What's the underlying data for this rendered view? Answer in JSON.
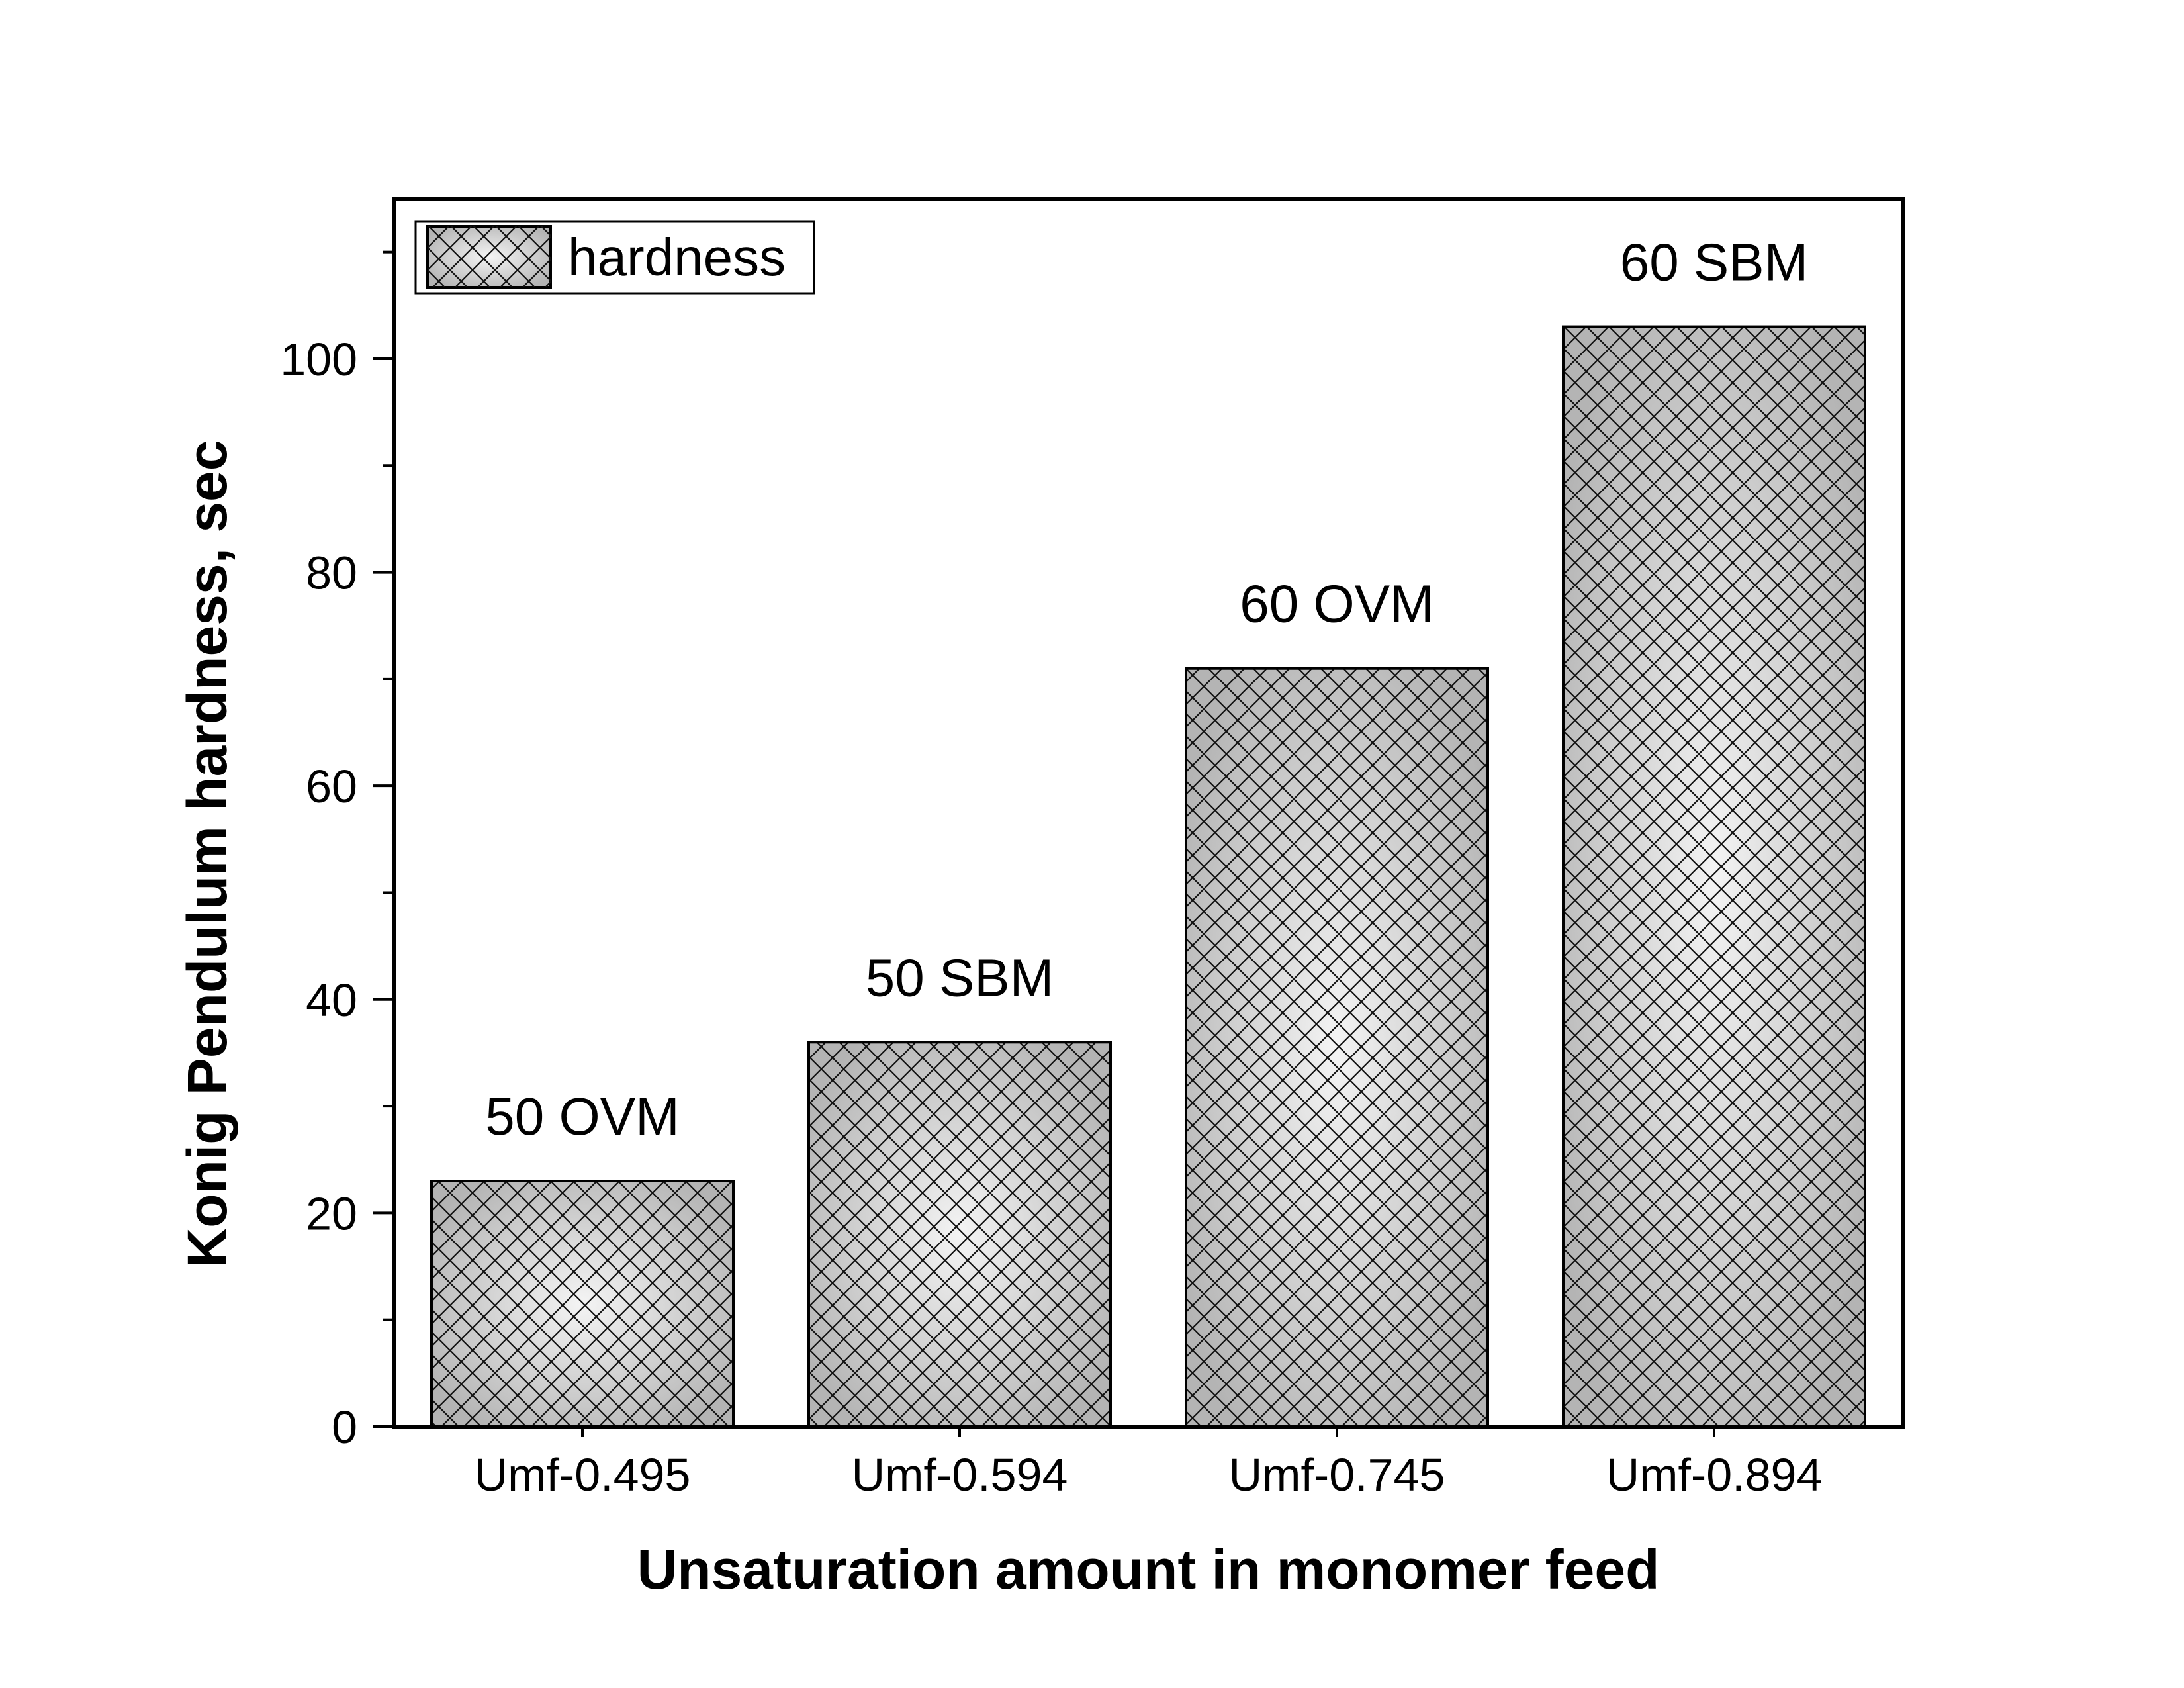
{
  "chart_data": {
    "type": "bar",
    "categories": [
      "Umf-0.495",
      "Umf-0.594",
      "Umf-0.745",
      "Umf-0.894"
    ],
    "values": [
      23,
      36,
      71,
      103
    ],
    "bar_labels": [
      "50 OVM",
      "50 SBM",
      "60 OVM",
      "60 SBM"
    ],
    "series": [
      {
        "name": "hardness",
        "values": [
          23,
          36,
          71,
          103
        ]
      }
    ],
    "xlabel": "Unsaturation amount in monomer feed",
    "ylabel": "Konig Pendulum hardness, sec",
    "ylim": [
      0,
      115
    ],
    "yticks": [
      0,
      20,
      40,
      60,
      80,
      100
    ],
    "ytick_labels": [
      "0",
      "20",
      "40",
      "60",
      "80",
      "100"
    ],
    "grid": false,
    "legend": {
      "position": "top-left",
      "label": "hardness"
    },
    "bar_fill": "crosshatch over radial gray gradient",
    "colors": {
      "bar_light": "#f4f4f4",
      "bar_dark": "#b4b4b4",
      "hatch": "#111111",
      "axis": "#000000"
    }
  }
}
